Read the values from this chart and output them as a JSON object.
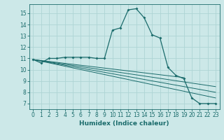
{
  "xlabel": "Humidex (Indice chaleur)",
  "ylabel": "",
  "xlim": [
    -0.5,
    23.5
  ],
  "ylim": [
    6.5,
    15.8
  ],
  "bg_color": "#cce8e8",
  "grid_color": "#aed4d4",
  "line_color": "#1a6b6b",
  "main_curve": {
    "x": [
      0,
      1,
      2,
      3,
      4,
      5,
      6,
      7,
      8,
      9,
      10,
      11,
      12,
      13,
      14,
      15,
      16,
      17,
      18,
      19,
      20,
      21,
      22,
      23
    ],
    "y": [
      10.9,
      10.6,
      11.0,
      11.0,
      11.1,
      11.1,
      11.1,
      11.1,
      11.0,
      11.0,
      13.5,
      13.7,
      15.3,
      15.4,
      14.6,
      13.1,
      12.8,
      10.2,
      9.5,
      9.2,
      7.5,
      7.0,
      7.0,
      7.0
    ]
  },
  "trend_lines": [
    {
      "x": [
        0,
        19
      ],
      "y": [
        10.9,
        9.3
      ]
    },
    {
      "x": [
        0,
        23
      ],
      "y": [
        10.9,
        8.5
      ]
    },
    {
      "x": [
        0,
        23
      ],
      "y": [
        10.9,
        8.0
      ]
    },
    {
      "x": [
        0,
        23
      ],
      "y": [
        10.9,
        7.5
      ]
    }
  ],
  "yticks": [
    7,
    8,
    9,
    10,
    11,
    12,
    13,
    14,
    15
  ],
  "xticks": [
    0,
    1,
    2,
    3,
    4,
    5,
    6,
    7,
    8,
    9,
    10,
    11,
    12,
    13,
    14,
    15,
    16,
    17,
    18,
    19,
    20,
    21,
    22,
    23
  ],
  "xlabel_fontsize": 6.5,
  "tick_fontsize": 5.5
}
